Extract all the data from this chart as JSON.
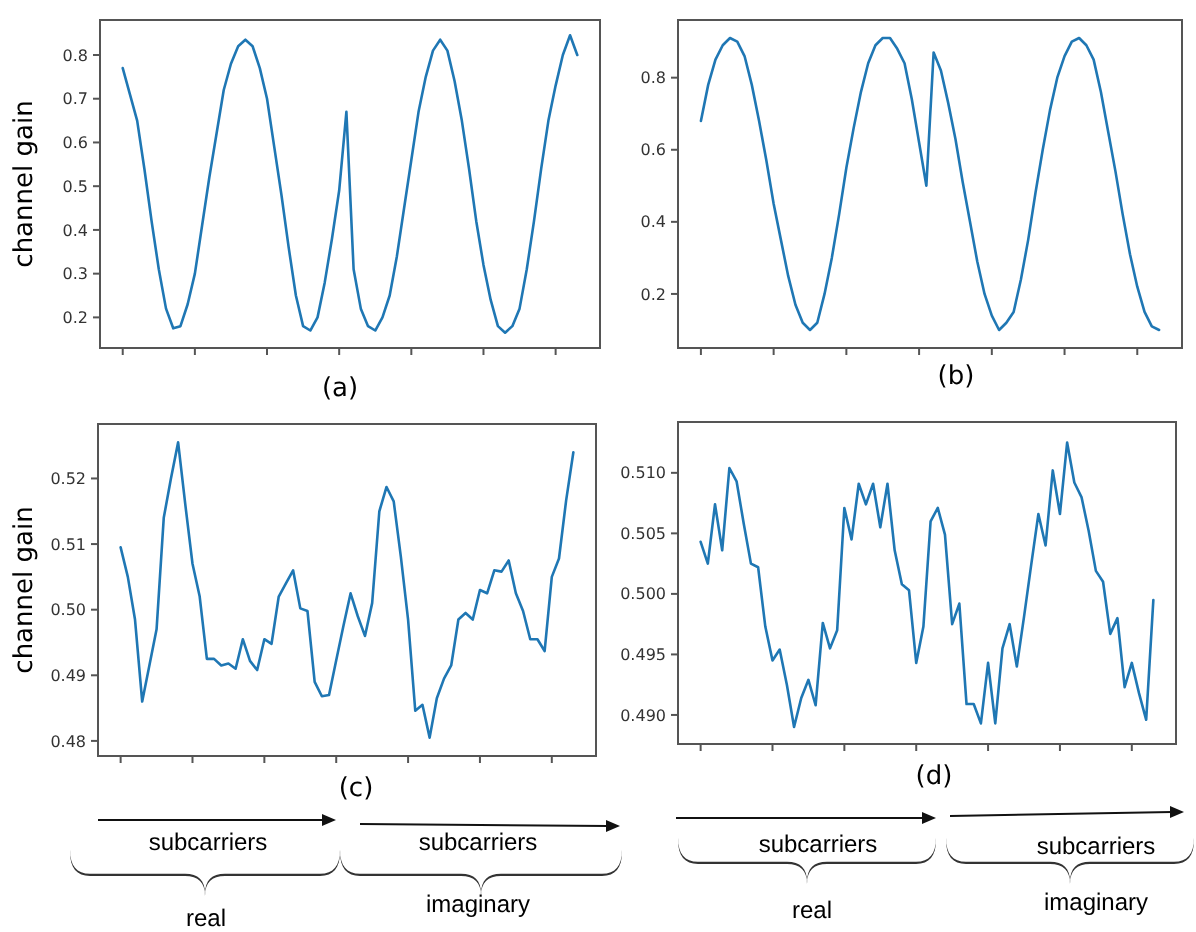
{
  "chart_data": [
    {
      "type": "line",
      "ylabel": "channel gain",
      "annotations": [
        "(a)"
      ],
      "color": "#1f77b4",
      "tick_labels": "y",
      "ylim": [
        0.13,
        0.88
      ],
      "yticks": [
        0.2,
        0.3,
        0.4,
        0.5,
        0.6,
        0.7,
        0.8
      ],
      "categories": [
        null,
        null,
        null,
        null,
        null,
        null,
        null,
        null,
        null,
        null,
        null,
        null,
        null,
        null,
        null,
        null,
        null,
        null,
        null,
        null,
        null,
        null,
        null,
        null,
        null,
        null,
        null,
        null,
        null,
        null,
        null,
        null,
        null,
        null,
        null,
        null,
        null,
        null,
        null,
        null,
        null,
        null,
        null,
        null,
        null,
        null,
        null,
        null,
        null,
        null,
        null,
        null,
        null,
        null,
        null,
        null,
        null,
        null,
        null,
        null,
        null,
        null,
        null,
        null
      ],
      "values": [
        0.77,
        0.71,
        0.65,
        0.54,
        0.42,
        0.31,
        0.22,
        0.175,
        0.18,
        0.23,
        0.3,
        0.41,
        0.52,
        0.62,
        0.72,
        0.78,
        0.82,
        0.835,
        0.82,
        0.77,
        0.7,
        0.59,
        0.48,
        0.36,
        0.25,
        0.18,
        0.17,
        0.2,
        0.28,
        0.38,
        0.49,
        0.67,
        0.31,
        0.22,
        0.18,
        0.17,
        0.2,
        0.25,
        0.34,
        0.45,
        0.56,
        0.67,
        0.75,
        0.81,
        0.835,
        0.81,
        0.74,
        0.65,
        0.54,
        0.42,
        0.32,
        0.24,
        0.18,
        0.165,
        0.18,
        0.22,
        0.31,
        0.42,
        0.54,
        0.65,
        0.73,
        0.8,
        0.845,
        0.8
      ]
    },
    {
      "type": "line",
      "annotations": [
        "(b)"
      ],
      "color": "#1f77b4",
      "tick_labels": "y",
      "ylim": [
        0.05,
        0.96
      ],
      "yticks": [
        0.2,
        0.4,
        0.6,
        0.8
      ],
      "categories": [
        null,
        null,
        null,
        null,
        null,
        null,
        null,
        null,
        null,
        null,
        null,
        null,
        null,
        null,
        null,
        null,
        null,
        null,
        null,
        null,
        null,
        null,
        null,
        null,
        null,
        null,
        null,
        null,
        null,
        null,
        null,
        null,
        null,
        null,
        null,
        null,
        null,
        null,
        null,
        null,
        null,
        null,
        null,
        null,
        null,
        null,
        null,
        null,
        null,
        null,
        null,
        null,
        null,
        null,
        null,
        null,
        null,
        null,
        null,
        null,
        null,
        null,
        null,
        null
      ],
      "values": [
        0.68,
        0.78,
        0.85,
        0.89,
        0.91,
        0.9,
        0.86,
        0.78,
        0.68,
        0.57,
        0.45,
        0.35,
        0.25,
        0.17,
        0.12,
        0.1,
        0.12,
        0.2,
        0.3,
        0.42,
        0.55,
        0.66,
        0.76,
        0.84,
        0.89,
        0.91,
        0.91,
        0.88,
        0.84,
        0.74,
        0.62,
        0.5,
        0.87,
        0.82,
        0.73,
        0.63,
        0.51,
        0.4,
        0.29,
        0.2,
        0.14,
        0.1,
        0.12,
        0.15,
        0.24,
        0.35,
        0.48,
        0.6,
        0.71,
        0.8,
        0.86,
        0.9,
        0.91,
        0.89,
        0.85,
        0.76,
        0.65,
        0.54,
        0.42,
        0.31,
        0.22,
        0.15,
        0.11,
        0.1
      ]
    },
    {
      "type": "line",
      "ylabel": "channel gain",
      "annotations": [
        "(c)",
        "subcarriers",
        "subcarriers",
        "real",
        "imaginary"
      ],
      "color": "#1f77b4",
      "tick_labels": "y",
      "ylim": [
        0.4777,
        0.5283
      ],
      "yticks": [
        0.48,
        0.49,
        {
          "value": 0.5,
          "label": "0.50"
        },
        0.51,
        0.52
      ],
      "categories": [
        null,
        null,
        null,
        null,
        null,
        null,
        null,
        null,
        null,
        null,
        null,
        null,
        null,
        null,
        null,
        null,
        null,
        null,
        null,
        null,
        null,
        null,
        null,
        null,
        null,
        null,
        null,
        null,
        null,
        null,
        null,
        null,
        null,
        null,
        null,
        null,
        null,
        null,
        null,
        null,
        null,
        null,
        null,
        null,
        null,
        null,
        null,
        null,
        null,
        null,
        null,
        null,
        null,
        null,
        null,
        null,
        null,
        null,
        null,
        null,
        null,
        null,
        null,
        null
      ],
      "values": [
        0.5095,
        0.505,
        0.4985,
        0.486,
        0.4915,
        0.497,
        0.514,
        0.52,
        0.5255,
        0.516,
        0.507,
        0.502,
        0.4925,
        0.4925,
        0.4915,
        0.4918,
        0.491,
        0.4955,
        0.4922,
        0.4908,
        0.4955,
        0.4948,
        0.502,
        0.504,
        0.506,
        0.5002,
        0.4998,
        0.489,
        0.4868,
        0.487,
        0.4923,
        0.4975,
        0.5025,
        0.499,
        0.496,
        0.501,
        0.515,
        0.5187,
        0.5165,
        0.508,
        0.4985,
        0.4846,
        0.4855,
        0.4805,
        0.4865,
        0.4895,
        0.4915,
        0.4985,
        0.4995,
        0.4985,
        0.503,
        0.5025,
        0.506,
        0.5058,
        0.5075,
        0.5025,
        0.4998,
        0.4955,
        0.4955,
        0.4937,
        0.505,
        0.5078,
        0.5167,
        0.524
      ]
    },
    {
      "type": "line",
      "annotations": [
        "(d)",
        "subcarriers",
        "subcarriers",
        "real",
        "imaginary"
      ],
      "color": "#1f77b4",
      "tick_labels": "y",
      "ylim": [
        0.4876,
        0.5142
      ],
      "yticks": [
        {
          "value": 0.49,
          "label": "0.490"
        },
        {
          "value": 0.495,
          "label": "0.495"
        },
        {
          "value": 0.5,
          "label": "0.500"
        },
        {
          "value": 0.505,
          "label": "0.505"
        },
        {
          "value": 0.51,
          "label": "0.510"
        }
      ],
      "categories": [
        null,
        null,
        null,
        null,
        null,
        null,
        null,
        null,
        null,
        null,
        null,
        null,
        null,
        null,
        null,
        null,
        null,
        null,
        null,
        null,
        null,
        null,
        null,
        null,
        null,
        null,
        null,
        null,
        null,
        null,
        null,
        null,
        null,
        null,
        null,
        null,
        null,
        null,
        null,
        null,
        null,
        null,
        null,
        null,
        null,
        null,
        null,
        null,
        null,
        null,
        null,
        null,
        null,
        null,
        null,
        null,
        null,
        null,
        null,
        null,
        null,
        null,
        null,
        null
      ],
      "values": [
        0.5043,
        0.5025,
        0.5074,
        0.5036,
        0.5104,
        0.5093,
        0.5058,
        0.5025,
        0.5022,
        0.4973,
        0.4945,
        0.4954,
        0.4925,
        0.489,
        0.4914,
        0.4929,
        0.4908,
        0.4976,
        0.4955,
        0.497,
        0.5071,
        0.5045,
        0.5091,
        0.5074,
        0.5091,
        0.5055,
        0.5091,
        0.5036,
        0.5008,
        0.5003,
        0.4943,
        0.4973,
        0.506,
        0.5071,
        0.5049,
        0.4975,
        0.4992,
        0.4909,
        0.4909,
        0.4893,
        0.4943,
        0.4893,
        0.4955,
        0.4975,
        0.494,
        0.4981,
        0.5024,
        0.5066,
        0.504,
        0.5102,
        0.5066,
        0.5125,
        0.5092,
        0.508,
        0.5052,
        0.5019,
        0.501,
        0.4967,
        0.498,
        0.4923,
        0.4943,
        0.4918,
        0.4896,
        0.4995
      ]
    }
  ]
}
